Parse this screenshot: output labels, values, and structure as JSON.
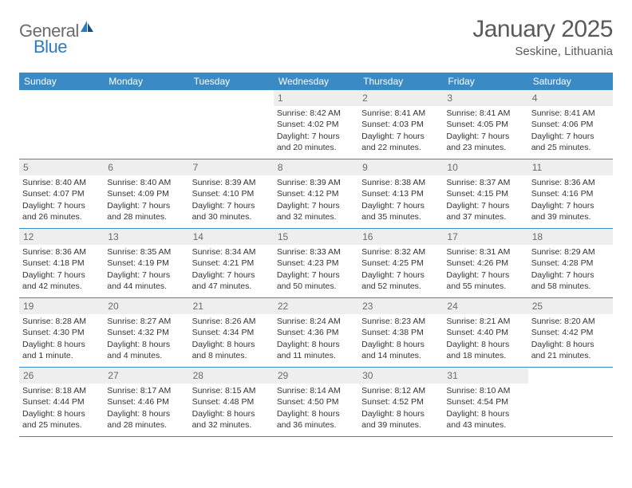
{
  "brand": {
    "text1": "General",
    "text2": "Blue"
  },
  "title": "January 2025",
  "location": "Seskine, Lithuania",
  "colors": {
    "header_bg": "#3a8ac6",
    "header_text": "#ffffff",
    "daynum_bg": "#eeeeee",
    "daynum_text": "#6a6a6a",
    "border": "#3a8ac6",
    "body_text": "#333333",
    "logo_gray": "#6b6b6b",
    "logo_blue": "#2b7bbf"
  },
  "day_names": [
    "Sunday",
    "Monday",
    "Tuesday",
    "Wednesday",
    "Thursday",
    "Friday",
    "Saturday"
  ],
  "weeks": [
    [
      {
        "empty": true
      },
      {
        "empty": true
      },
      {
        "empty": true
      },
      {
        "n": "1",
        "sr": "Sunrise: 8:42 AM",
        "ss": "Sunset: 4:02 PM",
        "d1": "Daylight: 7 hours",
        "d2": "and 20 minutes."
      },
      {
        "n": "2",
        "sr": "Sunrise: 8:41 AM",
        "ss": "Sunset: 4:03 PM",
        "d1": "Daylight: 7 hours",
        "d2": "and 22 minutes."
      },
      {
        "n": "3",
        "sr": "Sunrise: 8:41 AM",
        "ss": "Sunset: 4:05 PM",
        "d1": "Daylight: 7 hours",
        "d2": "and 23 minutes."
      },
      {
        "n": "4",
        "sr": "Sunrise: 8:41 AM",
        "ss": "Sunset: 4:06 PM",
        "d1": "Daylight: 7 hours",
        "d2": "and 25 minutes."
      }
    ],
    [
      {
        "n": "5",
        "sr": "Sunrise: 8:40 AM",
        "ss": "Sunset: 4:07 PM",
        "d1": "Daylight: 7 hours",
        "d2": "and 26 minutes."
      },
      {
        "n": "6",
        "sr": "Sunrise: 8:40 AM",
        "ss": "Sunset: 4:09 PM",
        "d1": "Daylight: 7 hours",
        "d2": "and 28 minutes."
      },
      {
        "n": "7",
        "sr": "Sunrise: 8:39 AM",
        "ss": "Sunset: 4:10 PM",
        "d1": "Daylight: 7 hours",
        "d2": "and 30 minutes."
      },
      {
        "n": "8",
        "sr": "Sunrise: 8:39 AM",
        "ss": "Sunset: 4:12 PM",
        "d1": "Daylight: 7 hours",
        "d2": "and 32 minutes."
      },
      {
        "n": "9",
        "sr": "Sunrise: 8:38 AM",
        "ss": "Sunset: 4:13 PM",
        "d1": "Daylight: 7 hours",
        "d2": "and 35 minutes."
      },
      {
        "n": "10",
        "sr": "Sunrise: 8:37 AM",
        "ss": "Sunset: 4:15 PM",
        "d1": "Daylight: 7 hours",
        "d2": "and 37 minutes."
      },
      {
        "n": "11",
        "sr": "Sunrise: 8:36 AM",
        "ss": "Sunset: 4:16 PM",
        "d1": "Daylight: 7 hours",
        "d2": "and 39 minutes."
      }
    ],
    [
      {
        "n": "12",
        "sr": "Sunrise: 8:36 AM",
        "ss": "Sunset: 4:18 PM",
        "d1": "Daylight: 7 hours",
        "d2": "and 42 minutes."
      },
      {
        "n": "13",
        "sr": "Sunrise: 8:35 AM",
        "ss": "Sunset: 4:19 PM",
        "d1": "Daylight: 7 hours",
        "d2": "and 44 minutes."
      },
      {
        "n": "14",
        "sr": "Sunrise: 8:34 AM",
        "ss": "Sunset: 4:21 PM",
        "d1": "Daylight: 7 hours",
        "d2": "and 47 minutes."
      },
      {
        "n": "15",
        "sr": "Sunrise: 8:33 AM",
        "ss": "Sunset: 4:23 PM",
        "d1": "Daylight: 7 hours",
        "d2": "and 50 minutes."
      },
      {
        "n": "16",
        "sr": "Sunrise: 8:32 AM",
        "ss": "Sunset: 4:25 PM",
        "d1": "Daylight: 7 hours",
        "d2": "and 52 minutes."
      },
      {
        "n": "17",
        "sr": "Sunrise: 8:31 AM",
        "ss": "Sunset: 4:26 PM",
        "d1": "Daylight: 7 hours",
        "d2": "and 55 minutes."
      },
      {
        "n": "18",
        "sr": "Sunrise: 8:29 AM",
        "ss": "Sunset: 4:28 PM",
        "d1": "Daylight: 7 hours",
        "d2": "and 58 minutes."
      }
    ],
    [
      {
        "n": "19",
        "sr": "Sunrise: 8:28 AM",
        "ss": "Sunset: 4:30 PM",
        "d1": "Daylight: 8 hours",
        "d2": "and 1 minute."
      },
      {
        "n": "20",
        "sr": "Sunrise: 8:27 AM",
        "ss": "Sunset: 4:32 PM",
        "d1": "Daylight: 8 hours",
        "d2": "and 4 minutes."
      },
      {
        "n": "21",
        "sr": "Sunrise: 8:26 AM",
        "ss": "Sunset: 4:34 PM",
        "d1": "Daylight: 8 hours",
        "d2": "and 8 minutes."
      },
      {
        "n": "22",
        "sr": "Sunrise: 8:24 AM",
        "ss": "Sunset: 4:36 PM",
        "d1": "Daylight: 8 hours",
        "d2": "and 11 minutes."
      },
      {
        "n": "23",
        "sr": "Sunrise: 8:23 AM",
        "ss": "Sunset: 4:38 PM",
        "d1": "Daylight: 8 hours",
        "d2": "and 14 minutes."
      },
      {
        "n": "24",
        "sr": "Sunrise: 8:21 AM",
        "ss": "Sunset: 4:40 PM",
        "d1": "Daylight: 8 hours",
        "d2": "and 18 minutes."
      },
      {
        "n": "25",
        "sr": "Sunrise: 8:20 AM",
        "ss": "Sunset: 4:42 PM",
        "d1": "Daylight: 8 hours",
        "d2": "and 21 minutes."
      }
    ],
    [
      {
        "n": "26",
        "sr": "Sunrise: 8:18 AM",
        "ss": "Sunset: 4:44 PM",
        "d1": "Daylight: 8 hours",
        "d2": "and 25 minutes."
      },
      {
        "n": "27",
        "sr": "Sunrise: 8:17 AM",
        "ss": "Sunset: 4:46 PM",
        "d1": "Daylight: 8 hours",
        "d2": "and 28 minutes."
      },
      {
        "n": "28",
        "sr": "Sunrise: 8:15 AM",
        "ss": "Sunset: 4:48 PM",
        "d1": "Daylight: 8 hours",
        "d2": "and 32 minutes."
      },
      {
        "n": "29",
        "sr": "Sunrise: 8:14 AM",
        "ss": "Sunset: 4:50 PM",
        "d1": "Daylight: 8 hours",
        "d2": "and 36 minutes."
      },
      {
        "n": "30",
        "sr": "Sunrise: 8:12 AM",
        "ss": "Sunset: 4:52 PM",
        "d1": "Daylight: 8 hours",
        "d2": "and 39 minutes."
      },
      {
        "n": "31",
        "sr": "Sunrise: 8:10 AM",
        "ss": "Sunset: 4:54 PM",
        "d1": "Daylight: 8 hours",
        "d2": "and 43 minutes."
      },
      {
        "empty": true
      }
    ]
  ]
}
